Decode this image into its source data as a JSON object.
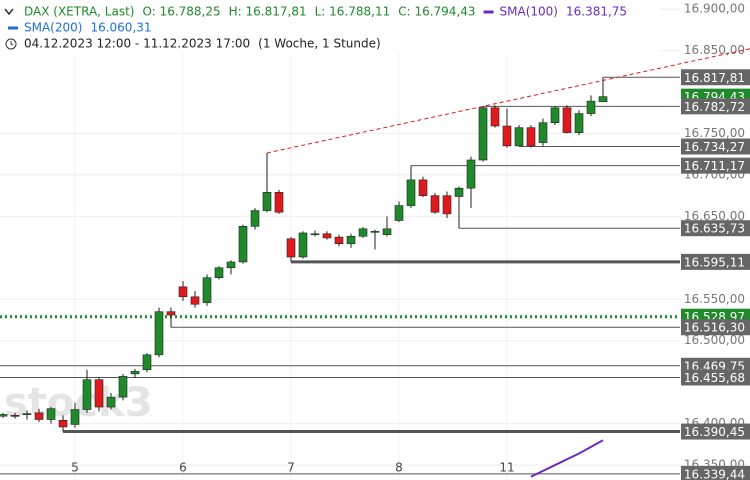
{
  "chart_data": {
    "type": "candlestick",
    "title": "DAX (XETRA, Last)",
    "ohlc_labels": [
      "O: 16.788,25",
      "H: 16.817,81",
      "L: 16.788,11",
      "C: 16.794,43"
    ],
    "indicators": [
      {
        "name": "SMA(100)",
        "value_label": "16.381,75",
        "color": "#6a2bbd"
      },
      {
        "name": "SMA(200)",
        "value_label": "16.060,31",
        "color": "#1e6fd9"
      }
    ],
    "range_label": "04.12.2023 12:00 - 11.12.2023 17:00",
    "interval_label": "(1 Woche, 1 Stunde)",
    "watermark": "stock3",
    "up_color": "#1f8a2a",
    "down_color": "#e0191d",
    "categories": [
      null,
      null,
      null,
      null,
      null,
      null,
      "5",
      null,
      null,
      null,
      null,
      null,
      null,
      null,
      null,
      "6",
      null,
      null,
      null,
      null,
      null,
      null,
      null,
      null,
      "7",
      null,
      null,
      null,
      null,
      null,
      null,
      null,
      null,
      "8",
      null,
      null,
      null,
      null,
      null,
      null,
      null,
      null,
      "11",
      null,
      null,
      null,
      null,
      null,
      null,
      null,
      null
    ],
    "open": [
      16409,
      16410,
      16411,
      16413,
      16405,
      16404,
      16399,
      16417,
      16453,
      16420,
      16432,
      16460,
      16465,
      16483,
      16535,
      16565,
      16553,
      16546,
      16576,
      16588,
      16595,
      16638,
      16657,
      16679,
      16623,
      16601,
      16629,
      16629,
      16625,
      16617,
      16626,
      16632,
      16628,
      16645,
      16663,
      16694,
      16675,
      16675,
      16674,
      16684,
      16718,
      16781,
      16759,
      16735,
      16757,
      16739,
      16763,
      16781,
      16751,
      16774,
      16788.25
    ],
    "high": [
      16413,
      16413,
      16416,
      16418,
      16420,
      16410,
      16425,
      16465,
      16456,
      16437,
      16460,
      16466,
      16485,
      16540,
      16540,
      16572,
      16560,
      16580,
      16590,
      16597,
      16640,
      16660,
      16726.5,
      16682,
      16625,
      16632,
      16633,
      16632,
      16628,
      16629,
      16637,
      16634,
      16650,
      16668,
      16711.17,
      16698,
      16678,
      16680,
      16686,
      16722,
      16782.72,
      16784,
      16780,
      16760,
      16760,
      16768,
      16783,
      16784,
      16778,
      16796,
      16817.81
    ],
    "low": [
      16407,
      16406,
      16405,
      16402,
      16400,
      16390.45,
      16395,
      16413,
      16415,
      16417,
      16428,
      16455,
      16462,
      16480,
      16516.3,
      16548,
      16540,
      16542,
      16574,
      16580,
      16593,
      16634,
      16655,
      16653,
      16595.11,
      16599,
      16626,
      16622,
      16614,
      16612,
      16624,
      16610,
      16626,
      16643,
      16660,
      16673,
      16653,
      16648,
      16635.73,
      16660,
      16716,
      16757,
      16733,
      16734.27,
      16733,
      16735,
      16760,
      16750,
      16748,
      16771,
      16788.11
    ],
    "close": [
      16411,
      16409,
      16412,
      16405,
      16418,
      16396,
      16417,
      16453,
      16420,
      16432,
      16457,
      16463,
      16483,
      16535,
      16531,
      16553,
      16544,
      16576,
      16588,
      16595,
      16638,
      16657,
      16679,
      16655,
      16601,
      16630,
      16629,
      16624,
      16617,
      16626,
      16635,
      16632,
      16635,
      16663,
      16694,
      16675,
      16655,
      16653,
      16684,
      16718,
      16781,
      16759,
      16735,
      16757,
      16735,
      16763,
      16781,
      16751,
      16774,
      16789,
      16794.43
    ],
    "sma100": [
      null,
      null,
      null,
      null,
      null,
      null,
      null,
      null,
      null,
      null,
      null,
      null,
      null,
      null,
      null,
      null,
      null,
      null,
      null,
      null,
      null,
      null,
      null,
      null,
      null,
      null,
      null,
      null,
      null,
      null,
      null,
      null,
      null,
      null,
      null,
      null,
      null,
      null,
      null,
      null,
      null,
      null,
      null,
      null,
      16336,
      16343,
      16350,
      16357,
      16364,
      16372,
      16380
    ],
    "trendline": {
      "color": "#e0191d",
      "points": [
        [
          22,
          16726.5
        ],
        [
          40,
          16782.72
        ]
      ]
    },
    "levels": [
      {
        "value": 16817.81,
        "label": "16.817,81",
        "color": "#555555",
        "style": "solid"
      },
      {
        "value": 16794.43,
        "label": "16.794,43",
        "color": "#1f8a2a",
        "style": "none"
      },
      {
        "value": 16782.72,
        "label": "16.782,72",
        "color": "#555555",
        "style": "solid"
      },
      {
        "value": 16734.27,
        "label": "16.734,27",
        "color": "#555555",
        "style": "solid"
      },
      {
        "value": 16711.17,
        "label": "16.711,17",
        "color": "#555555",
        "style": "solid"
      },
      {
        "value": 16635.73,
        "label": "16.635,73",
        "color": "#555555",
        "style": "solid"
      },
      {
        "value": 16595.11,
        "label": "16.595,11",
        "color": "#555555",
        "style": "thick"
      },
      {
        "value": 16528.97,
        "label": "16.528,97",
        "color": "#1f8a2a",
        "style": "dotted"
      },
      {
        "value": 16516.3,
        "label": "16.516,30",
        "color": "#555555",
        "style": "solid"
      },
      {
        "value": 16469.75,
        "label": "16.469,75",
        "color": "#555555",
        "style": "solid"
      },
      {
        "value": 16455.68,
        "label": "16.455,68",
        "color": "#555555",
        "style": "solid"
      },
      {
        "value": 16390.45,
        "label": "16.390,45",
        "color": "#555555",
        "style": "thick"
      },
      {
        "value": 16339.44,
        "label": "16.339,44",
        "color": "#555555",
        "style": "solid"
      }
    ],
    "ylim": [
      16332,
      16911
    ],
    "yticks": [
      {
        "value": 16900,
        "label": "16.900,00"
      },
      {
        "value": 16850,
        "label": "16.850,00"
      },
      {
        "value": 16750,
        "label": "16.750,00"
      },
      {
        "value": 16700,
        "label": "16.700,00"
      },
      {
        "value": 16650,
        "label": "16.650,00"
      },
      {
        "value": 16550,
        "label": "16.550,00"
      },
      {
        "value": 16500,
        "label": "16.500,00"
      },
      {
        "value": 16400,
        "label": "16.400,00"
      },
      {
        "value": 16350,
        "label": "16.350,00"
      }
    ],
    "grid": true
  }
}
